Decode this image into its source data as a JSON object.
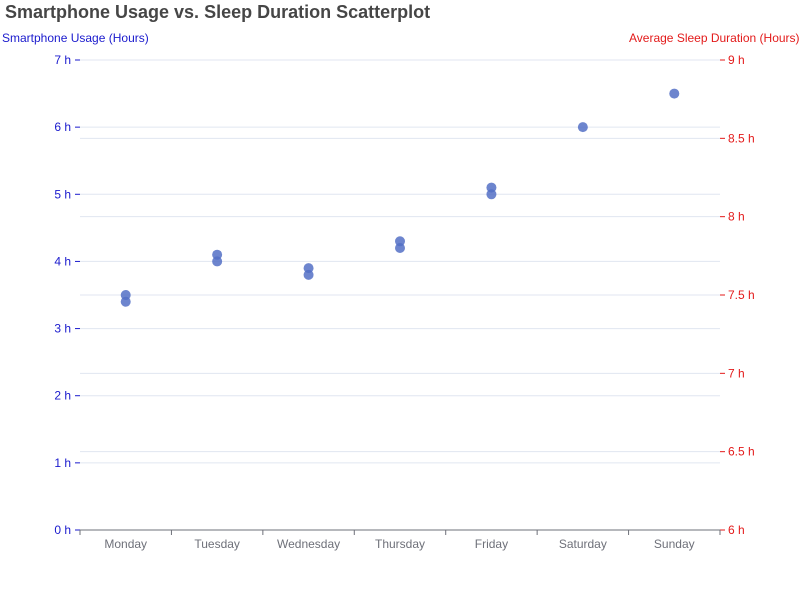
{
  "chart_data": {
    "type": "scatter",
    "title": "Smartphone Usage vs. Sleep Duration Scatterplot",
    "categories": [
      "Monday",
      "Tuesday",
      "Wednesday",
      "Thursday",
      "Friday",
      "Saturday",
      "Sunday"
    ],
    "y_left": {
      "label": "Smartphone Usage (Hours)",
      "range": [
        0,
        7
      ],
      "ticks": [
        "0 h",
        "1 h",
        "2 h",
        "3 h",
        "4 h",
        "5 h",
        "6 h",
        "7 h"
      ],
      "color": "#1a1acd"
    },
    "y_right": {
      "label": "Average Sleep Duration (Hours)",
      "range": [
        6,
        9
      ],
      "ticks": [
        "6 h",
        "6.5 h",
        "7 h",
        "7.5 h",
        "8 h",
        "8.5 h",
        "9 h"
      ],
      "color": "#e31a1a"
    },
    "series": [
      {
        "color": "#5470c6",
        "points": [
          {
            "x": "Monday",
            "y": 3.5
          },
          {
            "x": "Monday",
            "y": 3.4
          },
          {
            "x": "Tuesday",
            "y": 4.1
          },
          {
            "x": "Tuesday",
            "y": 4.0
          },
          {
            "x": "Wednesday",
            "y": 3.9
          },
          {
            "x": "Wednesday",
            "y": 3.8
          },
          {
            "x": "Thursday",
            "y": 4.3
          },
          {
            "x": "Thursday",
            "y": 4.2
          },
          {
            "x": "Friday",
            "y": 5.1
          },
          {
            "x": "Friday",
            "y": 5.0
          },
          {
            "x": "Saturday",
            "y": 6.0
          },
          {
            "x": "Sunday",
            "y": 6.5
          }
        ]
      }
    ],
    "grid": true,
    "legend": false
  }
}
